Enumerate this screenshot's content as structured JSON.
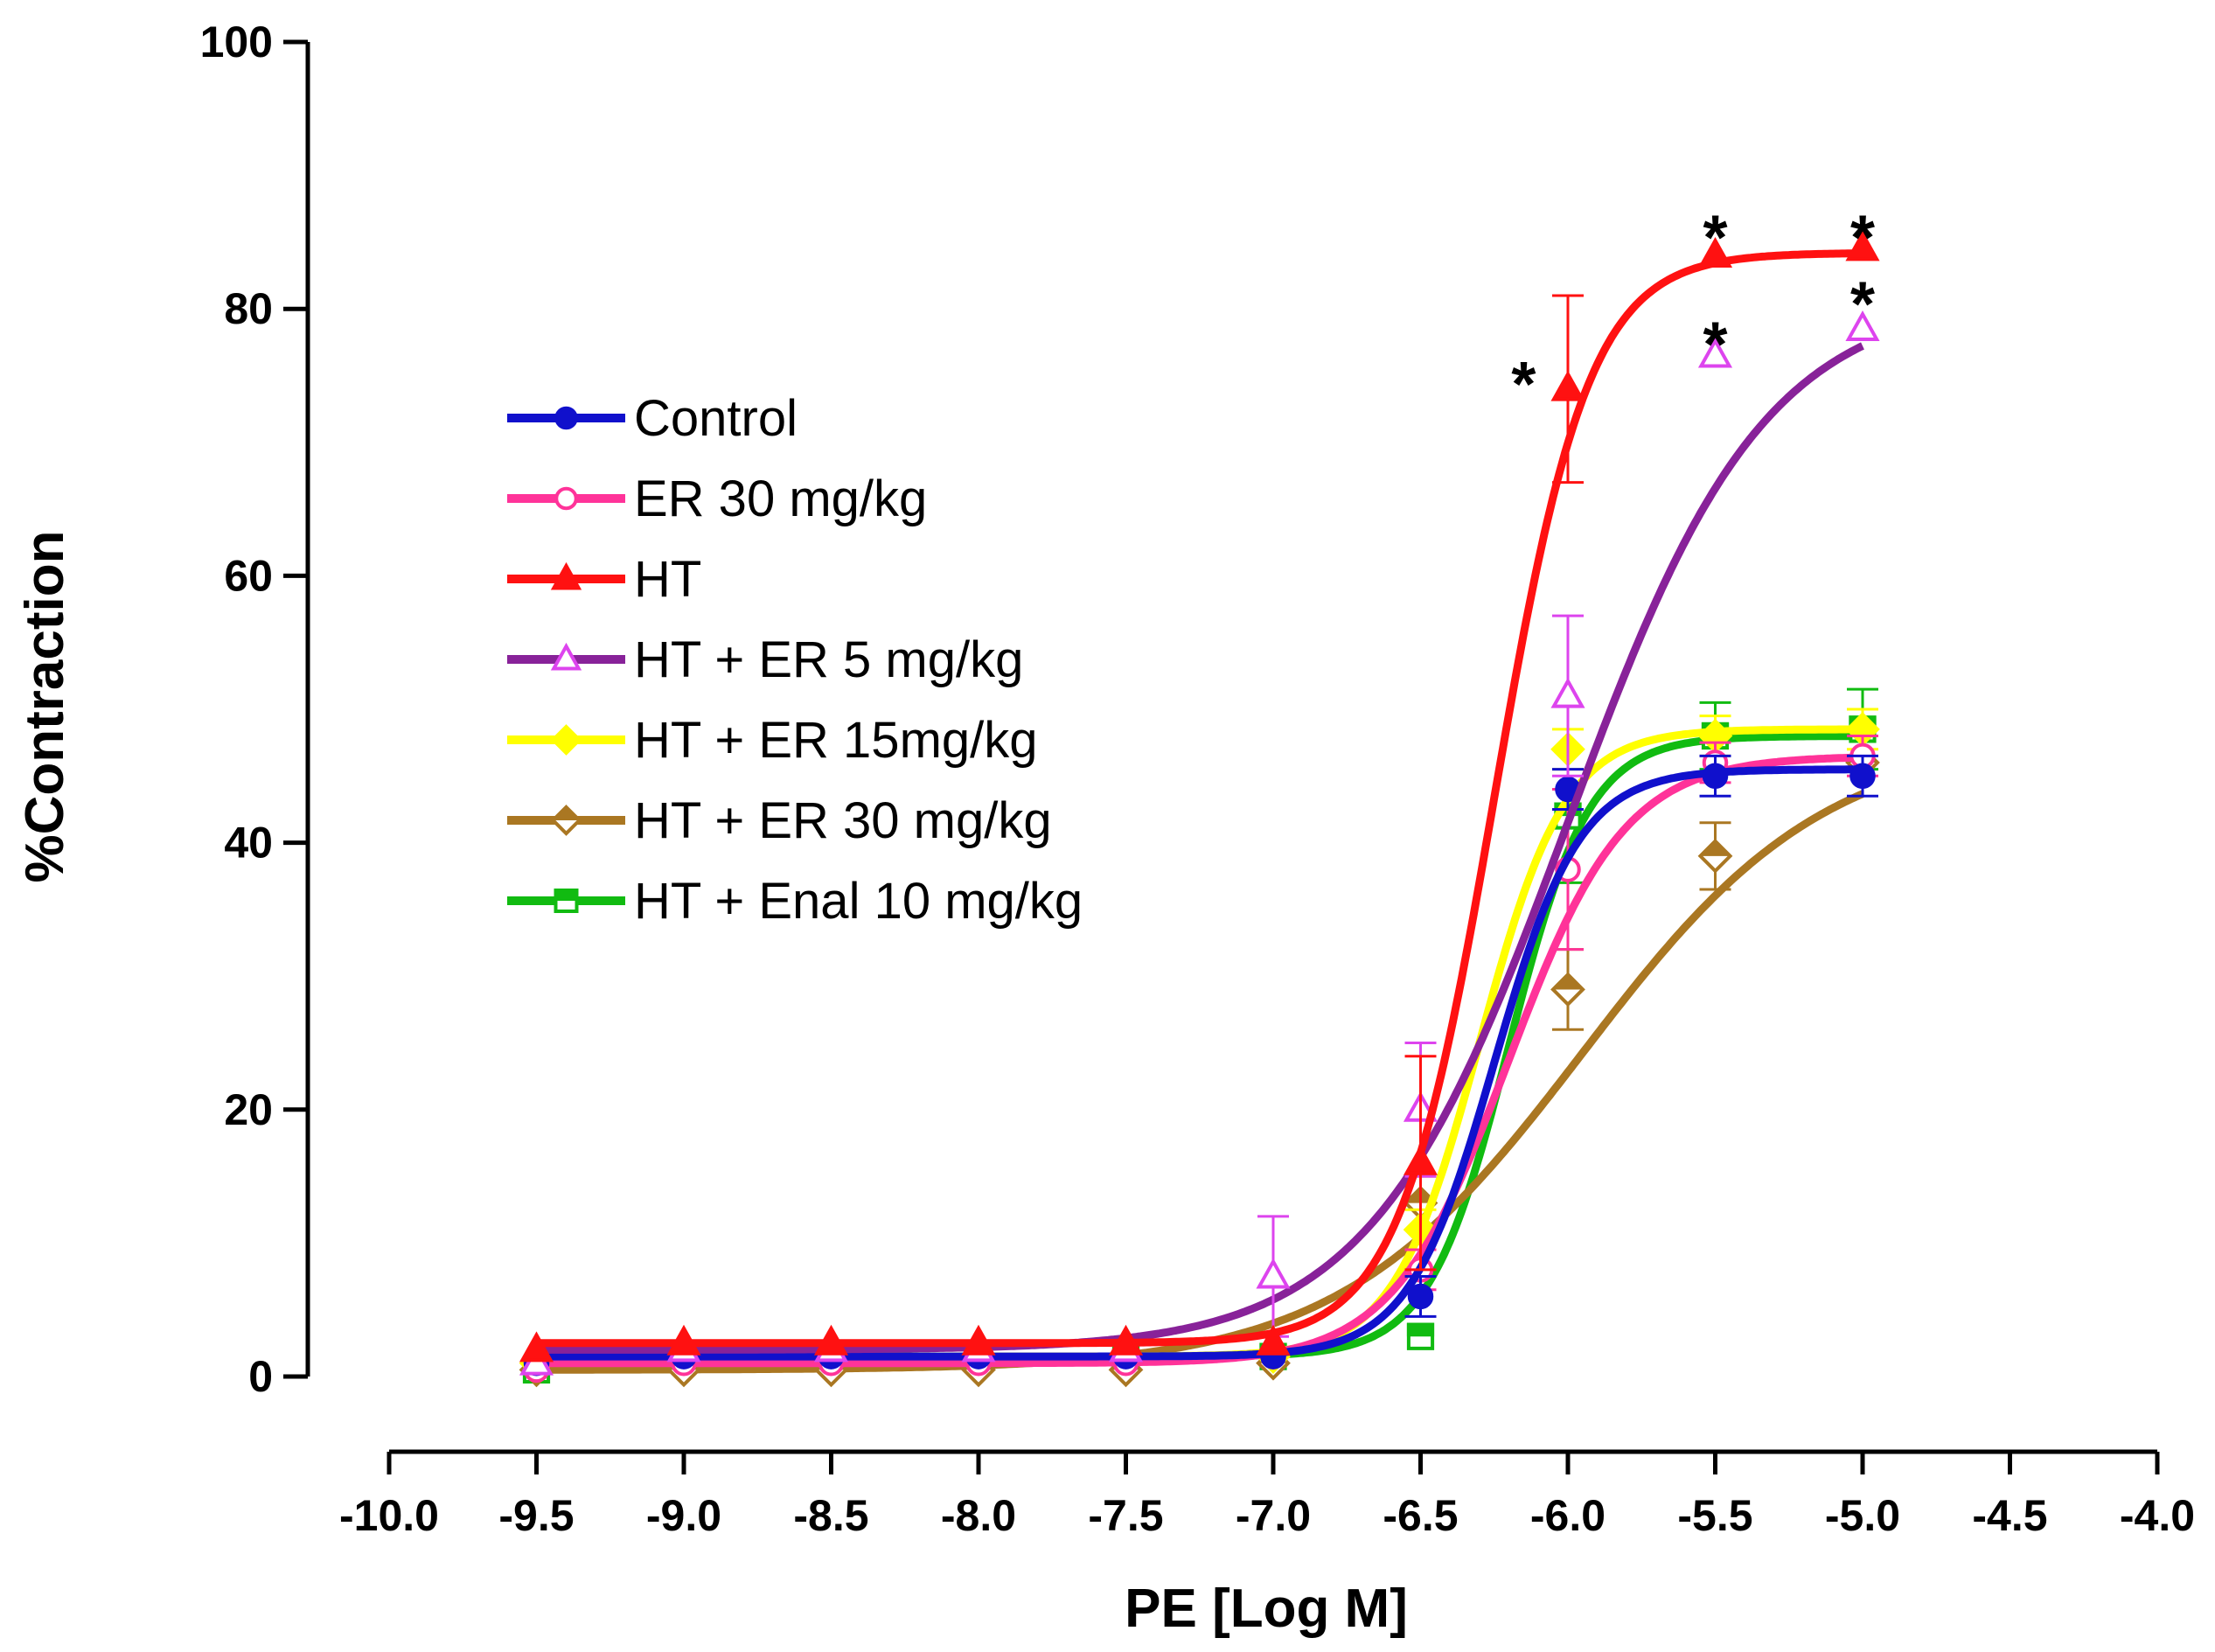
{
  "chart_data": {
    "type": "line",
    "xlabel": "PE [Log M]",
    "ylabel": "%Contraction",
    "xlim": [
      -10.0,
      -4.0
    ],
    "ylim": [
      0,
      100
    ],
    "x_ticks": [
      "-10.0",
      "-9.5",
      "-9.0",
      "-8.5",
      "-8.0",
      "-7.5",
      "-7.0",
      "-6.5",
      "-6.0",
      "-5.5",
      "-5.0",
      "-4.5",
      "-4.0"
    ],
    "y_ticks": [
      "0",
      "20",
      "40",
      "60",
      "80",
      "100"
    ],
    "grid": false,
    "legend_position": "left-middle",
    "x": [
      -9.5,
      -9.0,
      -8.5,
      -8.0,
      -7.5,
      -7.0,
      -6.5,
      -6.0,
      -5.5,
      -5.0
    ],
    "series": [
      {
        "name": "Control",
        "color": "#1010cc",
        "marker": "circle",
        "marker_fill": "filled",
        "values": [
          1,
          1.5,
          1.5,
          1.5,
          1.5,
          1.5,
          6,
          44,
          45,
          45
        ],
        "errors": [
          0.5,
          0.5,
          0.5,
          0.5,
          0.5,
          0.5,
          1.5,
          1.5,
          1.5,
          1.5
        ],
        "fit": {
          "bottom": 1.5,
          "top": 45.5,
          "logec50": -6.25,
          "hill": 3.0
        }
      },
      {
        "name": "ER 30 mg/kg",
        "color": "#ff3399",
        "marker": "circle",
        "marker_fill": "open",
        "values": [
          0.5,
          1,
          1,
          1,
          1,
          1.5,
          8,
          38,
          46,
          46.5
        ],
        "errors": [
          0.5,
          0.5,
          0.5,
          0.5,
          0.5,
          0.5,
          1.5,
          6,
          1.5,
          1.5
        ],
        "fit": {
          "bottom": 1.0,
          "top": 46.5,
          "logec50": -6.2,
          "hill": 2.2
        }
      },
      {
        "name": "HT",
        "color": "#ff1111",
        "marker": "triangle",
        "marker_fill": "filled",
        "values": [
          2,
          2.5,
          2.5,
          2.5,
          2.5,
          2.5,
          16,
          74,
          84,
          84.5
        ],
        "errors": [
          0.5,
          0.5,
          0.5,
          0.5,
          0.5,
          0.5,
          8,
          7,
          1,
          0.5
        ],
        "fit": {
          "bottom": 2.5,
          "top": 84.2,
          "logec50": -6.25,
          "hill": 2.7
        }
      },
      {
        "name": "HT + ER 5 mg/kg",
        "color": "#882299",
        "marker_color": "#dd44ee",
        "marker": "triangle",
        "marker_fill": "open",
        "values": [
          1,
          2,
          2,
          2,
          2,
          7.5,
          20,
          51,
          76.5,
          78.5
        ],
        "errors": [
          0.5,
          0.5,
          0.5,
          0.5,
          0.5,
          4.5,
          5,
          6,
          1,
          1
        ],
        "fit": {
          "bottom": 2.0,
          "top": 81,
          "logec50": -6.0,
          "hill": 1.3
        }
      },
      {
        "name": "HT + ER 15mg/kg",
        "color": "#ffff00",
        "marker": "diamond",
        "marker_fill": "filled",
        "values": [
          1,
          1.5,
          1.5,
          1.5,
          1.5,
          1.5,
          11,
          47,
          48,
          48.5
        ],
        "errors": [
          0.5,
          0.5,
          0.5,
          0.5,
          0.5,
          0.5,
          1.5,
          1.5,
          1.5,
          1.5
        ],
        "fit": {
          "bottom": 1.5,
          "top": 48.5,
          "logec50": -6.3,
          "hill": 3.0
        }
      },
      {
        "name": "HT + ER 30 mg/kg",
        "color": "#aa7722",
        "marker": "diamond",
        "marker_fill": "mixed",
        "values": [
          0.5,
          0.5,
          0.5,
          0.5,
          0.5,
          1,
          13,
          29,
          39,
          46
        ],
        "errors": [
          0.5,
          0.5,
          0.5,
          0.5,
          0.5,
          0.5,
          2,
          3,
          2.5,
          1
        ],
        "fit": {
          "bottom": 0.5,
          "top": 48,
          "logec50": -5.95,
          "hill": 1.05
        }
      },
      {
        "name": "HT + Enal 10 mg/kg",
        "color": "#11bb11",
        "marker": "square",
        "marker_fill": "mixed",
        "values": [
          0.5,
          1.5,
          1.5,
          1.5,
          1.5,
          1.5,
          3,
          42,
          48,
          48.5
        ],
        "errors": [
          0.5,
          0.5,
          0.5,
          0.5,
          0.5,
          0.5,
          1,
          5,
          2.5,
          3
        ],
        "fit": {
          "bottom": 1.5,
          "top": 48,
          "logec50": -6.2,
          "hill": 3.2
        }
      }
    ],
    "annotations": [
      {
        "text": "*",
        "x": -6.15,
        "y": 76
      },
      {
        "text": "*",
        "x": -5.5,
        "y": 87
      },
      {
        "text": "*",
        "x": -5.0,
        "y": 87
      },
      {
        "text": "*",
        "x": -5.5,
        "y": 79
      },
      {
        "text": "*",
        "x": -5.0,
        "y": 82
      }
    ]
  }
}
